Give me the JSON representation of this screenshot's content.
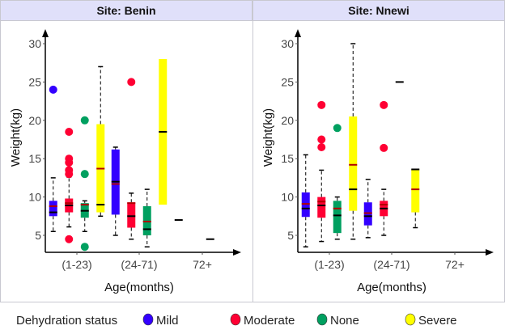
{
  "chart_data": {
    "type": "box",
    "xlabel": "Age(months)",
    "ylabel": "Weight(kg)",
    "ylim": [
      3,
      31
    ],
    "yticks": [
      5,
      10,
      15,
      20,
      25,
      30
    ],
    "categories": [
      "(1-23)",
      "(24-71)",
      "72+"
    ],
    "legend": {
      "title": "Dehydration status",
      "placement": "bottom",
      "entries": [
        "Mild",
        "Moderate",
        "None",
        "Severe"
      ]
    },
    "colors": {
      "Mild": "#3300ff",
      "Moderate": "#ff0033",
      "None": "#00a060",
      "Severe": "#ffff00",
      "mean_line": "#b00000",
      "median_line": "#000000"
    },
    "panels": [
      {
        "title": "Site: Benin",
        "boxes": [
          {
            "category": "(1-23)",
            "group": "Mild",
            "whisker_low": 5.5,
            "q1": 7.5,
            "median": 8,
            "mean": 8.8,
            "q3": 9.5,
            "whisker_high": 12.5,
            "outliers": [
              24
            ]
          },
          {
            "category": "(1-23)",
            "group": "Moderate",
            "whisker_low": 6.1,
            "q1": 8,
            "median": 8.9,
            "mean": 9.2,
            "q3": 9.8,
            "whisker_high": 12.6,
            "outliers": [
              4.5,
              13,
              13.5,
              14.5,
              15,
              18.5
            ]
          },
          {
            "category": "(1-23)",
            "group": "None",
            "whisker_low": 5.5,
            "q1": 7.3,
            "median": 8.2,
            "mean": 9.0,
            "q3": 9.2,
            "whisker_high": 9.5,
            "outliers": [
              3.5,
              13,
              20
            ]
          },
          {
            "category": "(1-23)",
            "group": "Severe",
            "whisker_low": 7.5,
            "q1": 8,
            "median": 9,
            "mean": 13.7,
            "q3": 19.5,
            "whisker_high": 27,
            "outliers": []
          },
          {
            "category": "(24-71)",
            "group": "Mild",
            "whisker_low": 5,
            "q1": 7.7,
            "median": 12,
            "mean": 11.7,
            "q3": 16.2,
            "whisker_high": 16.5,
            "outliers": []
          },
          {
            "category": "(24-71)",
            "group": "Moderate",
            "whisker_low": 4.5,
            "q1": 6,
            "median": 7.5,
            "mean": 9.2,
            "q3": 9.3,
            "whisker_high": 10.5,
            "outliers": [
              25
            ]
          },
          {
            "category": "(24-71)",
            "group": "None",
            "whisker_low": 3.5,
            "q1": 5,
            "median": 5.8,
            "mean": 6.8,
            "q3": 8.8,
            "whisker_high": 11,
            "outliers": []
          },
          {
            "category": "(24-71)",
            "group": "Severe",
            "whisker_low": null,
            "q1": 9,
            "median": 18.5,
            "mean": null,
            "q3": 28,
            "whisker_high": null,
            "outliers": []
          },
          {
            "category": "72+",
            "group": "Mild",
            "whisker_low": null,
            "q1": 7,
            "median": 7,
            "mean": null,
            "q3": 7,
            "whisker_high": null,
            "outliers": []
          },
          {
            "category": "72+",
            "group": "None",
            "whisker_low": null,
            "q1": 4.5,
            "median": 4.5,
            "mean": null,
            "q3": 4.5,
            "whisker_high": null,
            "outliers": []
          }
        ]
      },
      {
        "title": "Site: Nnewi",
        "boxes": [
          {
            "category": "(1-23)",
            "group": "Mild",
            "whisker_low": 3.5,
            "q1": 7.4,
            "median": 8.5,
            "mean": 9.1,
            "q3": 10.6,
            "whisker_high": 15.5,
            "outliers": []
          },
          {
            "category": "(1-23)",
            "group": "Moderate",
            "whisker_low": 4.2,
            "q1": 7.3,
            "median": 8.9,
            "mean": 9.4,
            "q3": 10,
            "whisker_high": 13.5,
            "outliers": [
              16.5,
              17.5,
              22
            ]
          },
          {
            "category": "(1-23)",
            "group": "None",
            "whisker_low": 4.5,
            "q1": 5.3,
            "median": 7.6,
            "mean": 8.5,
            "q3": 9.5,
            "whisker_high": 10,
            "outliers": [
              19
            ]
          },
          {
            "category": "(1-23)",
            "group": "Severe",
            "whisker_low": 4.5,
            "q1": 8.2,
            "median": 11,
            "mean": 14.2,
            "q3": 20.5,
            "whisker_high": 30,
            "outliers": []
          },
          {
            "category": "(24-71)",
            "group": "Mild",
            "whisker_low": 4.7,
            "q1": 6.3,
            "median": 7.5,
            "mean": 7.9,
            "q3": 9.3,
            "whisker_high": 12.3,
            "outliers": []
          },
          {
            "category": "(24-71)",
            "group": "Moderate",
            "whisker_low": 5,
            "q1": 7.5,
            "median": 8.5,
            "mean": 9.0,
            "q3": 9.5,
            "whisker_high": 11,
            "outliers": [
              16.4,
              22
            ]
          },
          {
            "category": "(24-71)",
            "group": "None",
            "whisker_low": null,
            "q1": 25,
            "median": 25,
            "mean": null,
            "q3": 25,
            "whisker_high": null,
            "outliers": []
          },
          {
            "category": "(24-71)",
            "group": "Severe",
            "whisker_low": 6,
            "q1": 8,
            "median": 13.6,
            "mean": 11,
            "q3": 13.6,
            "whisker_high": 13.6,
            "outliers": []
          }
        ]
      }
    ]
  }
}
